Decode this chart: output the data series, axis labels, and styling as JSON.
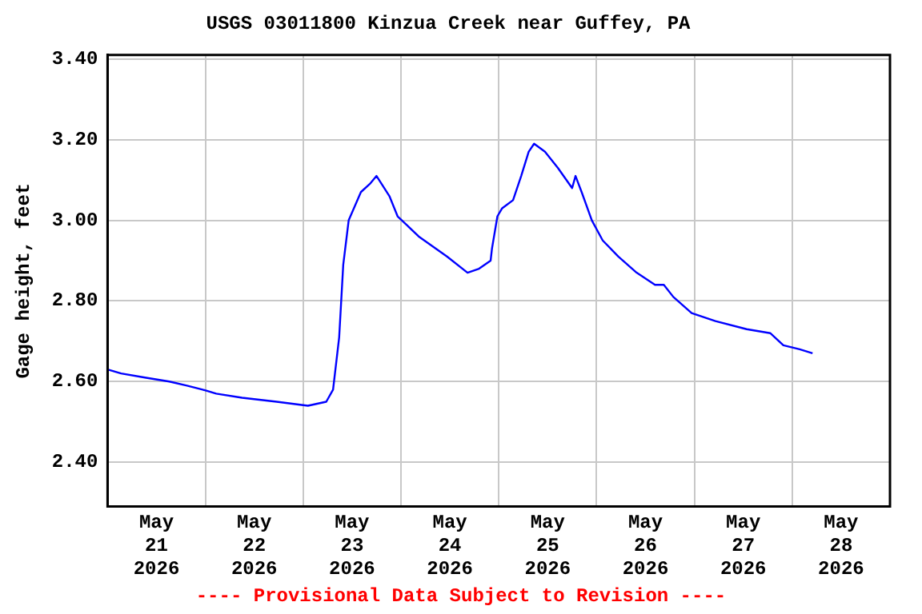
{
  "chart_data": {
    "type": "line",
    "title": "USGS 03011800 Kinzua Creek near Guffey, PA",
    "ylabel": "Gage height, feet",
    "annotations": [
      "---- Provisional Data Subject to Revision ----"
    ],
    "x": [
      "2026-05-21T00:00",
      "2026-05-21T03:20",
      "2026-05-21T09:10",
      "2026-05-21T15:10",
      "2026-05-21T19:30",
      "2026-05-21T23:20",
      "2026-05-22T02:40",
      "2026-05-22T09:00",
      "2026-05-22T17:30",
      "2026-05-23T01:10",
      "2026-05-23T05:40",
      "2026-05-23T07:20",
      "2026-05-23T08:50",
      "2026-05-23T09:50",
      "2026-05-23T11:10",
      "2026-05-23T14:10",
      "2026-05-23T16:20",
      "2026-05-23T18:00",
      "2026-05-23T21:10",
      "2026-05-23T23:10",
      "2026-05-24T04:20",
      "2026-05-24T11:20",
      "2026-05-24T16:20",
      "2026-05-24T19:10",
      "2026-05-24T22:00",
      "2026-05-24T22:20",
      "2026-05-24T23:40",
      "2026-05-25T00:50",
      "2026-05-25T03:30",
      "2026-05-25T05:30",
      "2026-05-25T07:20",
      "2026-05-25T08:40",
      "2026-05-25T11:20",
      "2026-05-25T14:30",
      "2026-05-25T18:00",
      "2026-05-25T18:50",
      "2026-05-25T20:20",
      "2026-05-25T22:50",
      "2026-05-26T01:30",
      "2026-05-26T05:20",
      "2026-05-26T09:50",
      "2026-05-26T14:20",
      "2026-05-26T16:30",
      "2026-05-26T18:50",
      "2026-05-26T23:20",
      "2026-05-27T05:10",
      "2026-05-27T12:50",
      "2026-05-27T18:40",
      "2026-05-27T21:50",
      "2026-05-28T01:50",
      "2026-05-28T05:00"
    ],
    "series": [
      {
        "color": "#0000ff",
        "values": [
          2.63,
          2.62,
          2.61,
          2.6,
          2.59,
          2.58,
          2.57,
          2.56,
          2.55,
          2.54,
          2.55,
          2.58,
          2.71,
          2.89,
          3.0,
          3.07,
          3.09,
          3.11,
          3.06,
          3.01,
          2.96,
          2.91,
          2.87,
          2.88,
          2.9,
          2.93,
          3.01,
          3.03,
          3.05,
          3.11,
          3.17,
          3.19,
          3.17,
          3.13,
          3.08,
          3.11,
          3.07,
          3.0,
          2.95,
          2.91,
          2.87,
          2.84,
          2.84,
          2.81,
          2.77,
          2.75,
          2.73,
          2.72,
          2.69,
          2.68,
          2.67
        ]
      }
    ],
    "xlim": [
      "2026-05-21",
      "2026-05-29"
    ],
    "xticks": [
      {
        "value": "2026-05-21T12:00",
        "label": "May 21 2026"
      },
      {
        "value": "2026-05-22",
        "label": null
      },
      {
        "value": "2026-05-22T12:00",
        "label": "May 22 2026"
      },
      {
        "value": "2026-05-23",
        "label": null
      },
      {
        "value": "2026-05-23T12:00",
        "label": "May 23 2026"
      },
      {
        "value": "2026-05-24",
        "label": null
      },
      {
        "value": "2026-05-24T12:00",
        "label": "May 24 2026"
      },
      {
        "value": "2026-05-25",
        "label": null
      },
      {
        "value": "2026-05-25T12:00",
        "label": "May 25 2026"
      },
      {
        "value": "2026-05-26",
        "label": null
      },
      {
        "value": "2026-05-26T12:00",
        "label": "May 26 2026"
      },
      {
        "value": "2026-05-27",
        "label": null
      },
      {
        "value": "2026-05-27T12:00",
        "label": "May 27 2026"
      },
      {
        "value": "2026-05-28",
        "label": null
      },
      {
        "value": "2026-05-28T12:00",
        "label": "May 28 2026"
      }
    ],
    "ylim": [
      2.29,
      3.41
    ],
    "yticks": [
      {
        "value": 2.4,
        "label": "2.40"
      },
      {
        "value": 2.6,
        "label": "2.60"
      },
      {
        "value": 2.8,
        "label": "2.80"
      },
      {
        "value": 3.0,
        "label": "3.00"
      },
      {
        "value": 3.2,
        "label": "3.20"
      },
      {
        "value": 3.4,
        "label": "3.40"
      }
    ],
    "grid": true,
    "line_style": "solid",
    "marker": "none"
  }
}
